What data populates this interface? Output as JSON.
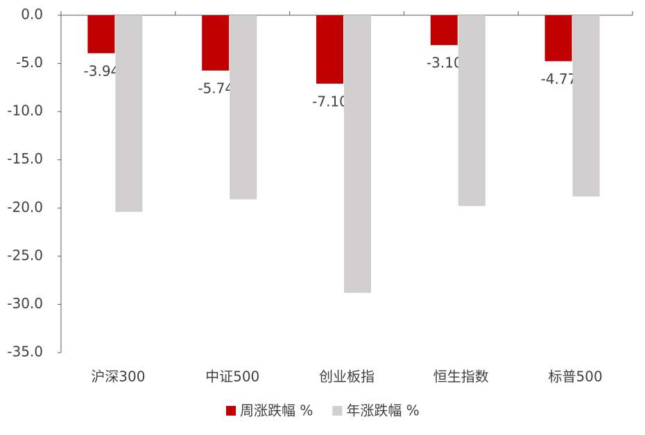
{
  "chart_data": {
    "type": "bar",
    "categories": [
      "沪深300",
      "中证500",
      "创业板指",
      "恒生指数",
      "标普500"
    ],
    "series": [
      {
        "name": "周涨跌幅 %",
        "color": "#c00000",
        "values": [
          -3.94,
          -5.74,
          -7.1,
          -3.1,
          -4.77
        ],
        "value_labels": [
          "-3.94",
          "-5.74",
          "-7.10",
          "-3.10",
          "-4.77"
        ]
      },
      {
        "name": "年涨跌幅 %",
        "color": "#d0cece",
        "values": [
          -20.4,
          -19.1,
          -28.8,
          -19.8,
          -18.8
        ]
      }
    ],
    "ylim": [
      -35,
      0
    ],
    "yticks": [
      {
        "value": 0,
        "label": "0.0"
      },
      {
        "value": -5,
        "label": "-5.0"
      },
      {
        "value": -10,
        "label": "-10.0"
      },
      {
        "value": -15,
        "label": "-15.0"
      },
      {
        "value": -20,
        "label": "-20.0"
      },
      {
        "value": -25,
        "label": "-25.0"
      },
      {
        "value": -30,
        "label": "-30.0"
      },
      {
        "value": -35,
        "label": "-35.0"
      }
    ]
  }
}
